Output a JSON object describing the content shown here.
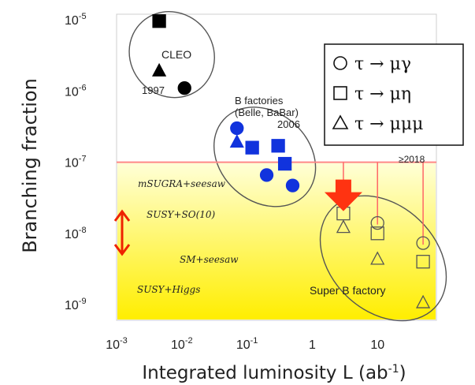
{
  "chart_data": {
    "type": "scatter",
    "xlabel": "Integrated luminosity L (ab",
    "xlabel_sup": "-1",
    "xlabel_end": ")",
    "ylabel": "Branching fraction",
    "xscale": "log",
    "yscale": "log",
    "xlim": [
      0.001,
      80
    ],
    "ylim": [
      6e-10,
      1.2e-05
    ],
    "x_ticks": [
      {
        "value": 0.001,
        "base": "10",
        "exp": "-3"
      },
      {
        "value": 0.01,
        "base": "10",
        "exp": "-2"
      },
      {
        "value": 0.1,
        "base": "10",
        "exp": "-1"
      },
      {
        "value": 1,
        "base": "1",
        "exp": ""
      },
      {
        "value": 10,
        "base": "10",
        "exp": ""
      }
    ],
    "y_ticks": [
      {
        "value": 1e-09,
        "base": "10",
        "exp": "-9"
      },
      {
        "value": 1e-08,
        "base": "10",
        "exp": "-8"
      },
      {
        "value": 1e-07,
        "base": "10",
        "exp": "-7"
      },
      {
        "value": 1e-06,
        "base": "10",
        "exp": "-6"
      },
      {
        "value": 1e-05,
        "base": "10",
        "exp": "-5"
      }
    ],
    "legend": {
      "placement": "top-right",
      "entries": [
        {
          "marker": "circle",
          "label": "τ → μγ"
        },
        {
          "marker": "square",
          "label": "τ → μη"
        },
        {
          "marker": "triangle",
          "label": "τ → μμμ"
        }
      ]
    },
    "series": [
      {
        "group": "CLEO",
        "color": "#000000",
        "points": [
          {
            "x": 0.0045,
            "y": 9.6e-06,
            "marker": "square"
          },
          {
            "x": 0.0045,
            "y": 1.9e-06,
            "marker": "triangle"
          },
          {
            "x": 0.011,
            "y": 1.1e-06,
            "marker": "circle"
          }
        ]
      },
      {
        "group": "B factories (Belle, BaBar) 2006",
        "color": "#1133dd",
        "points": [
          {
            "x": 0.07,
            "y": 3e-07,
            "marker": "circle"
          },
          {
            "x": 0.07,
            "y": 1.9e-07,
            "marker": "triangle"
          },
          {
            "x": 0.12,
            "y": 1.6e-07,
            "marker": "square"
          },
          {
            "x": 0.3,
            "y": 1.7e-07,
            "marker": "square"
          },
          {
            "x": 0.38,
            "y": 9.5e-08,
            "marker": "square"
          },
          {
            "x": 0.2,
            "y": 6.6e-08,
            "marker": "circle"
          },
          {
            "x": 0.5,
            "y": 4.7e-08,
            "marker": "circle"
          }
        ]
      },
      {
        "group": "Super B factory ≥2018",
        "color": "#999999",
        "points": [
          {
            "x": 3,
            "y": 1.9e-08,
            "marker": "square"
          },
          {
            "x": 3,
            "y": 1.2e-08,
            "marker": "triangle"
          },
          {
            "x": 10,
            "y": 1.4e-08,
            "marker": "circle"
          },
          {
            "x": 10,
            "y": 1e-08,
            "marker": "square"
          },
          {
            "x": 10,
            "y": 4.3e-09,
            "marker": "triangle"
          },
          {
            "x": 50,
            "y": 7.3e-09,
            "marker": "circle"
          },
          {
            "x": 50,
            "y": 4e-09,
            "marker": "square"
          },
          {
            "x": 50,
            "y": 1.05e-09,
            "marker": "triangle"
          }
        ]
      }
    ],
    "reference_line": {
      "y": 1e-07,
      "color": "#ff8888"
    },
    "prediction_region": {
      "from": 6e-10,
      "to": 1e-07,
      "colors": [
        "#ffffd0",
        "#ffee00"
      ]
    },
    "annotations": [
      {
        "text": "CLEO",
        "kind": "group"
      },
      {
        "text": "1997",
        "kind": "year"
      },
      {
        "text": "B factories",
        "kind": "group"
      },
      {
        "text": "(Belle, BaBar)",
        "kind": "group"
      },
      {
        "text": "2006",
        "kind": "year"
      },
      {
        "text": "≥2018",
        "kind": "year"
      },
      {
        "text": "Super B factory",
        "kind": "group"
      },
      {
        "text": "mSUGRA+seesaw",
        "kind": "model"
      },
      {
        "text": "SUSY+SO(10)",
        "kind": "model"
      },
      {
        "text": "SM+seesaw",
        "kind": "model"
      },
      {
        "text": "SUSY+Higgs",
        "kind": "model"
      }
    ]
  }
}
